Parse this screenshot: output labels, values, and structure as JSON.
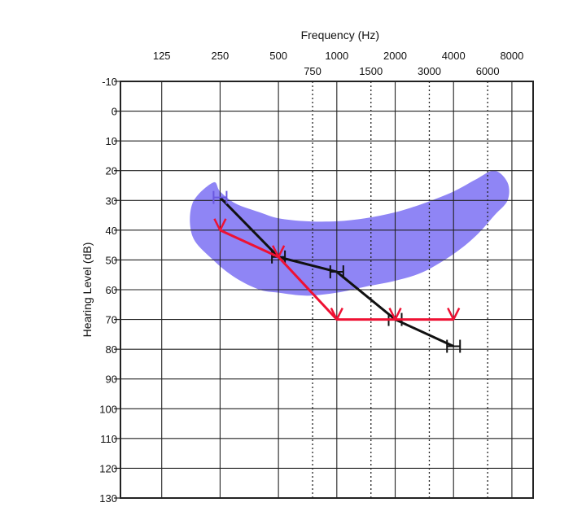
{
  "chart_data": {
    "type": "line",
    "title": "",
    "xlabel": "Frequency (Hz)",
    "ylabel": "Hearing Level (dB)",
    "x_scale": "log",
    "x_axis_position": "top",
    "y_inverted": true,
    "xlim": [
      125,
      8000
    ],
    "ylim": [
      -10,
      130
    ],
    "x_major_ticks": [
      125,
      250,
      500,
      1000,
      2000,
      4000,
      8000
    ],
    "x_major_tick_labels": [
      "125",
      "250",
      "500",
      "1000",
      "2000",
      "4000",
      "8000"
    ],
    "x_minor_ticks": [
      750,
      1500,
      3000,
      6000
    ],
    "x_minor_tick_labels": [
      "750",
      "1500",
      "3000",
      "6000"
    ],
    "y_ticks": [
      -10,
      0,
      10,
      20,
      30,
      40,
      50,
      60,
      70,
      80,
      90,
      100,
      110,
      120,
      130
    ],
    "y_tick_labels": [
      "-10",
      "0",
      "10",
      "20",
      "30",
      "40",
      "50",
      "60",
      "70",
      "80",
      "90",
      "100",
      "110",
      "120",
      "130"
    ],
    "grid": true,
    "series": [
      {
        "marker": "H",
        "color": "#111111",
        "x": [
          250,
          500,
          1000,
          2000,
          4000
        ],
        "y": [
          29,
          49,
          54,
          70,
          79
        ]
      },
      {
        "marker": "V",
        "color": "#ee1133",
        "x": [
          250,
          500,
          1000,
          2000,
          4000
        ],
        "y": [
          40,
          49,
          70,
          70,
          70
        ]
      }
    ],
    "shaded_region": {
      "color": "#8f85f5",
      "upper_edge": {
        "x": [
          180,
          230,
          250,
          300,
          400,
          500,
          700,
          1000,
          1400,
          2000,
          2800,
          4000,
          5200,
          6500,
          7600
        ],
        "y": [
          31,
          24,
          27,
          31,
          34,
          36,
          37,
          37,
          36,
          34,
          31,
          27,
          23,
          20,
          24
        ]
      },
      "lower_edge": {
        "x": [
          180,
          230,
          300,
          400,
          500,
          700,
          1000,
          1400,
          2000,
          2800,
          4000,
          5200,
          6500,
          7600
        ],
        "y": [
          42,
          50,
          56,
          60,
          61,
          62,
          61,
          59,
          57,
          54,
          48,
          42,
          35,
          30
        ]
      }
    },
    "first_marker_color": "#6a58e0"
  }
}
